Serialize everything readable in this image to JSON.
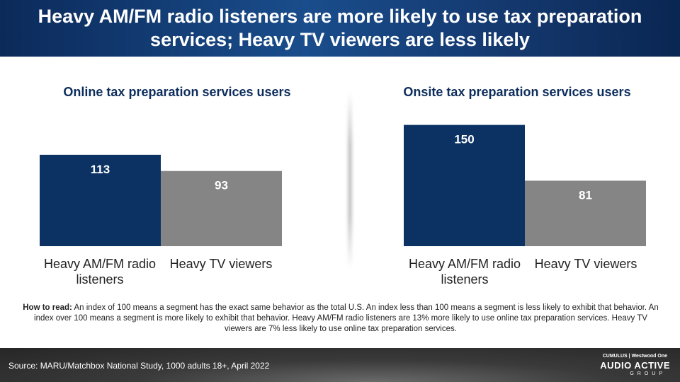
{
  "header": {
    "title": "Heavy AM/FM radio listeners are more likely to use tax preparation services; Heavy TV viewers are less likely"
  },
  "colors": {
    "radio": "#0b3263",
    "tv": "#858585"
  },
  "chart_data": [
    {
      "type": "bar",
      "title": "Online tax preparation services users",
      "categories": [
        "Heavy AM/FM radio listeners",
        "Heavy TV viewers"
      ],
      "values": [
        113,
        93
      ],
      "ylim": [
        0,
        175
      ],
      "grid": false
    },
    {
      "type": "bar",
      "title": "Onsite tax preparation services users",
      "categories": [
        "Heavy AM/FM radio listeners",
        "Heavy TV viewers"
      ],
      "values": [
        150,
        81
      ],
      "ylim": [
        0,
        175
      ],
      "grid": false
    }
  ],
  "note": {
    "lead": "How to read:",
    "text": "An index of 100 means a segment has the exact same behavior as the total U.S. An index less than 100 means a segment is less likely to exhibit that behavior. An index over 100 means a segment is more likely to exhibit that behavior. Heavy AM/FM radio listeners are 13% more likely to use online tax preparation services. Heavy TV viewers are 7% less likely to use online tax preparation services."
  },
  "footer": {
    "source": "Source: MARU/Matchbox National Study, 1000 adults 18+, April 2022",
    "brand_top": "CUMULUS | Westwood One",
    "brand_main": "AUDIO ACTIVE",
    "brand_sub": "GROUP"
  }
}
